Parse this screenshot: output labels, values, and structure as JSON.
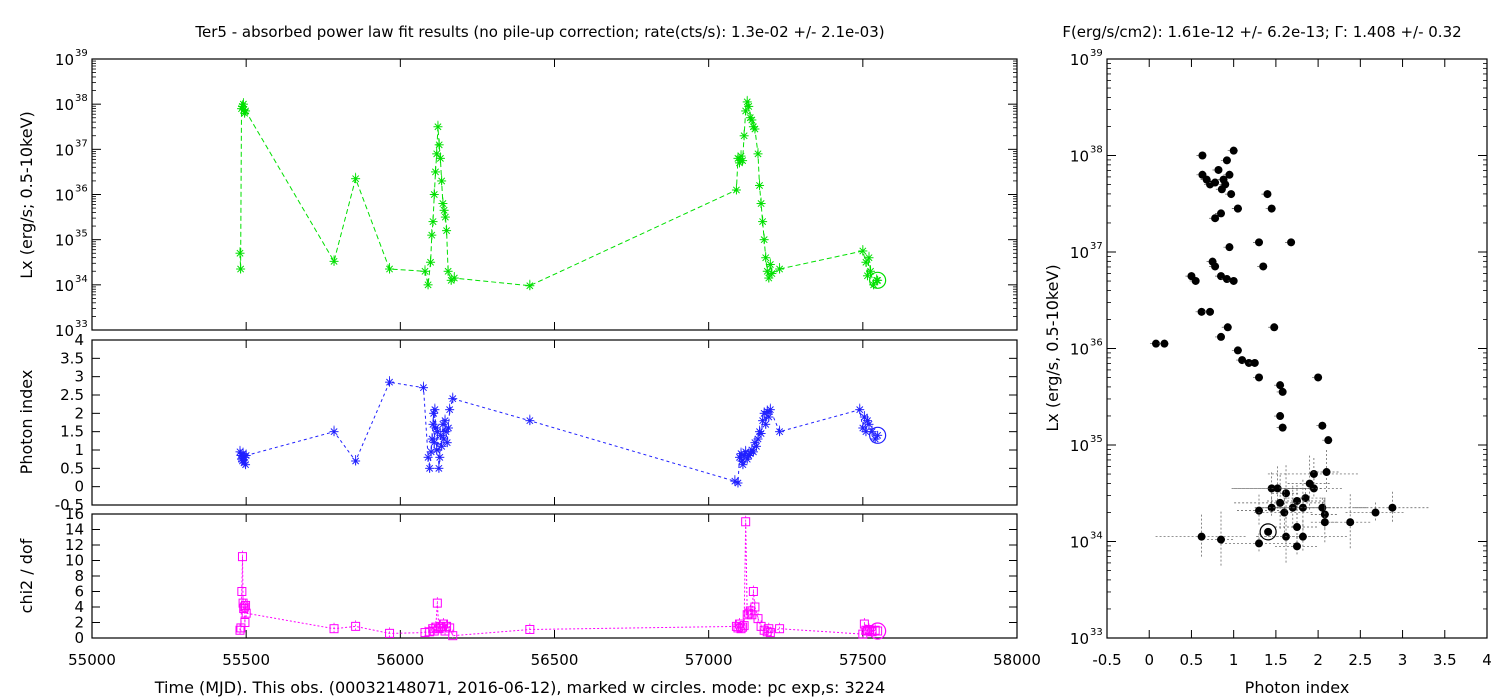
{
  "chart_data": [
    {
      "type": "line",
      "panel": "luminosity-vs-time",
      "title": "Ter5  - absorbed power law fit results (no pile-up correction; rate(cts/s): 1.3e-02 +/- 2.1e-03)",
      "ylabel": "Lx (erg/s; 0.5-10keV)",
      "yscale": "log",
      "ylim_exp": [
        33,
        39
      ],
      "ytick_base": "10",
      "ytick_exps": [
        "33",
        "34",
        "35",
        "36",
        "37",
        "38",
        "39"
      ],
      "color": "#00e000",
      "marker": "asterisk",
      "points": [
        [
          55480,
          34.7
        ],
        [
          55482,
          34.35
        ],
        [
          55485,
          37.9
        ],
        [
          55488,
          37.95
        ],
        [
          55491,
          38.0
        ],
        [
          55493,
          37.88
        ],
        [
          55495,
          37.8
        ],
        [
          55498,
          37.85
        ],
        [
          55785,
          34.52
        ],
        [
          55855,
          36.35
        ],
        [
          55965,
          34.35
        ],
        [
          56080,
          34.3
        ],
        [
          56090,
          34.0
        ],
        [
          56098,
          34.5
        ],
        [
          56102,
          35.1
        ],
        [
          56106,
          35.4
        ],
        [
          56110,
          36.0
        ],
        [
          56114,
          36.5
        ],
        [
          56118,
          36.9
        ],
        [
          56122,
          37.5
        ],
        [
          56126,
          37.1
        ],
        [
          56130,
          36.8
        ],
        [
          56134,
          36.3
        ],
        [
          56138,
          35.8
        ],
        [
          56142,
          35.65
        ],
        [
          56146,
          35.5
        ],
        [
          56150,
          35.2
        ],
        [
          56155,
          34.3
        ],
        [
          56165,
          34.1
        ],
        [
          56175,
          34.15
        ],
        [
          56420,
          33.98
        ],
        [
          57090,
          36.1
        ],
        [
          57095,
          36.8
        ],
        [
          57100,
          36.7
        ],
        [
          57105,
          36.85
        ],
        [
          57110,
          36.75
        ],
        [
          57115,
          37.3
        ],
        [
          57120,
          37.85
        ],
        [
          57125,
          38.05
        ],
        [
          57130,
          37.95
        ],
        [
          57135,
          37.7
        ],
        [
          57140,
          37.65
        ],
        [
          57145,
          37.5
        ],
        [
          57150,
          37.45
        ],
        [
          57160,
          36.9
        ],
        [
          57165,
          36.2
        ],
        [
          57170,
          35.8
        ],
        [
          57175,
          35.4
        ],
        [
          57180,
          35.0
        ],
        [
          57185,
          34.6
        ],
        [
          57190,
          34.3
        ],
        [
          57195,
          34.15
        ],
        [
          57200,
          34.45
        ],
        [
          57205,
          34.25
        ],
        [
          57230,
          34.35
        ],
        [
          57500,
          34.75
        ],
        [
          57510,
          34.5
        ],
        [
          57515,
          34.2
        ],
        [
          57520,
          34.6
        ],
        [
          57525,
          34.3
        ],
        [
          57535,
          34.0
        ],
        [
          57545,
          34.1
        ]
      ],
      "current_obs": [
        57548,
        34.1
      ]
    },
    {
      "type": "line",
      "panel": "photon-index-vs-time",
      "ylabel": "Photon index",
      "ylim": [
        -0.5,
        4
      ],
      "yticks": [
        "-0.5",
        "0",
        "0.5",
        "1",
        "1.5",
        "2",
        "2.5",
        "3",
        "3.5",
        "4"
      ],
      "color": "#2020ff",
      "marker": "asterisk",
      "points": [
        [
          55480,
          0.95
        ],
        [
          55483,
          0.85
        ],
        [
          55485,
          0.75
        ],
        [
          55488,
          0.7
        ],
        [
          55490,
          0.9
        ],
        [
          55493,
          0.65
        ],
        [
          55496,
          0.8
        ],
        [
          55498,
          0.6
        ],
        [
          55500,
          0.85
        ],
        [
          55785,
          1.5
        ],
        [
          55855,
          0.7
        ],
        [
          55965,
          2.85
        ],
        [
          56075,
          2.7
        ],
        [
          56090,
          0.8
        ],
        [
          56095,
          0.5
        ],
        [
          56100,
          0.95
        ],
        [
          56103,
          1.3
        ],
        [
          56106,
          1.7
        ],
        [
          56108,
          2.0
        ],
        [
          56110,
          1.2
        ],
        [
          56112,
          2.1
        ],
        [
          56115,
          1.6
        ],
        [
          56118,
          1.0
        ],
        [
          56121,
          1.5
        ],
        [
          56125,
          0.5
        ],
        [
          56128,
          0.8
        ],
        [
          56131,
          1.4
        ],
        [
          56134,
          1.1
        ],
        [
          56138,
          1.7
        ],
        [
          56141,
          1.3
        ],
        [
          56145,
          1.8
        ],
        [
          56148,
          1.5
        ],
        [
          56152,
          1.2
        ],
        [
          56156,
          1.6
        ],
        [
          56160,
          2.1
        ],
        [
          56170,
          2.4
        ],
        [
          56420,
          1.8
        ],
        [
          57085,
          0.15
        ],
        [
          57095,
          0.1
        ],
        [
          57100,
          0.8
        ],
        [
          57105,
          0.9
        ],
        [
          57108,
          0.7
        ],
        [
          57111,
          0.6
        ],
        [
          57115,
          0.85
        ],
        [
          57120,
          0.95
        ],
        [
          57125,
          0.75
        ],
        [
          57130,
          0.85
        ],
        [
          57135,
          0.9
        ],
        [
          57140,
          1.0
        ],
        [
          57145,
          0.95
        ],
        [
          57150,
          1.2
        ],
        [
          57155,
          1.1
        ],
        [
          57160,
          1.3
        ],
        [
          57165,
          1.5
        ],
        [
          57170,
          1.45
        ],
        [
          57175,
          1.8
        ],
        [
          57180,
          2.0
        ],
        [
          57185,
          1.7
        ],
        [
          57190,
          2.05
        ],
        [
          57195,
          1.9
        ],
        [
          57200,
          2.1
        ],
        [
          57230,
          1.5
        ],
        [
          57490,
          2.1
        ],
        [
          57500,
          1.6
        ],
        [
          57505,
          1.9
        ],
        [
          57510,
          1.5
        ],
        [
          57515,
          1.8
        ],
        [
          57520,
          1.7
        ],
        [
          57530,
          1.5
        ],
        [
          57540,
          1.3
        ]
      ],
      "current_obs": [
        57548,
        1.4
      ]
    },
    {
      "type": "line",
      "panel": "chi2-vs-time",
      "ylabel": "chi2 / dof",
      "xlabel": "Time (MJD). This obs. (00032148071, 2016-06-12), marked w circles. mode: pc exp,s: 3224",
      "ylim": [
        0,
        16
      ],
      "yticks": [
        "0",
        "2",
        "4",
        "6",
        "8",
        "10",
        "12",
        "14",
        "16"
      ],
      "xlim": [
        55000,
        58000
      ],
      "xticks": [
        "55000",
        "55500",
        "56000",
        "56500",
        "57000",
        "57500",
        "58000"
      ],
      "color": "#ff00ff",
      "marker": "square",
      "points": [
        [
          55480,
          1.0
        ],
        [
          55483,
          1.3
        ],
        [
          55486,
          6.0
        ],
        [
          55488,
          10.5
        ],
        [
          55490,
          4.5
        ],
        [
          55492,
          3.8
        ],
        [
          55494,
          4.0
        ],
        [
          55496,
          2.0
        ],
        [
          55498,
          4.2
        ],
        [
          55500,
          3.2
        ],
        [
          55785,
          1.2
        ],
        [
          55855,
          1.5
        ],
        [
          55965,
          0.6
        ],
        [
          56080,
          0.7
        ],
        [
          56095,
          0.8
        ],
        [
          56105,
          1.2
        ],
        [
          56110,
          0.9
        ],
        [
          56115,
          1.4
        ],
        [
          56120,
          4.5
        ],
        [
          56125,
          1.2
        ],
        [
          56130,
          1.5
        ],
        [
          56135,
          1.3
        ],
        [
          56140,
          1.8
        ],
        [
          56145,
          0.9
        ],
        [
          56150,
          1.5
        ],
        [
          56160,
          1.3
        ],
        [
          56170,
          0.3
        ],
        [
          56420,
          1.1
        ],
        [
          57090,
          1.5
        ],
        [
          57095,
          1.3
        ],
        [
          57100,
          1.8
        ],
        [
          57105,
          1.2
        ],
        [
          57110,
          1.4
        ],
        [
          57115,
          1.6
        ],
        [
          57120,
          15.0
        ],
        [
          57125,
          3.0
        ],
        [
          57130,
          3.2
        ],
        [
          57135,
          3.5
        ],
        [
          57140,
          3.0
        ],
        [
          57145,
          6.0
        ],
        [
          57150,
          4.0
        ],
        [
          57160,
          2.5
        ],
        [
          57170,
          1.5
        ],
        [
          57180,
          1.0
        ],
        [
          57190,
          0.8
        ],
        [
          57195,
          1.2
        ],
        [
          57200,
          0.7
        ],
        [
          57230,
          1.2
        ],
        [
          57500,
          0.5
        ],
        [
          57505,
          1.8
        ],
        [
          57510,
          1.0
        ],
        [
          57515,
          0.9
        ],
        [
          57520,
          1.1
        ],
        [
          57530,
          0.8
        ],
        [
          57540,
          1.0
        ]
      ],
      "current_obs": [
        57548,
        0.9
      ]
    },
    {
      "type": "scatter",
      "panel": "lx-vs-photon-index",
      "title": "F(erg/s/cm2): 1.61e-12 +/- 6.2e-13; Γ: 1.408 +/- 0.32",
      "xlabel": "Photon index",
      "ylabel": "Lx (erg/s, 0.5-10keV)",
      "xlim": [
        -0.5,
        4
      ],
      "xticks": [
        "-0.5",
        "0",
        "0.5",
        "1",
        "1.5",
        "2",
        "2.5",
        "3",
        "3.5",
        "4"
      ],
      "yscale": "log",
      "ylim_exp": [
        33,
        39
      ],
      "ytick_base": "10",
      "ytick_exps": [
        "33",
        "34",
        "35",
        "36",
        "37",
        "38",
        "39"
      ],
      "color": "#000000",
      "points": [
        [
          0.63,
          38.0
        ],
        [
          0.63,
          37.8
        ],
        [
          0.68,
          37.75
        ],
        [
          0.72,
          37.7
        ],
        [
          0.78,
          37.72
        ],
        [
          0.82,
          37.85
        ],
        [
          0.86,
          37.65
        ],
        [
          0.88,
          37.75
        ],
        [
          0.9,
          37.7
        ],
        [
          0.92,
          37.95
        ],
        [
          0.95,
          37.8
        ],
        [
          0.97,
          37.6
        ],
        [
          1.0,
          38.05
        ],
        [
          0.78,
          37.35
        ],
        [
          0.85,
          37.4
        ],
        [
          1.05,
          37.45
        ],
        [
          1.05,
          37.45
        ],
        [
          1.4,
          37.6
        ],
        [
          1.45,
          37.45
        ],
        [
          0.95,
          37.05
        ],
        [
          0.78,
          36.85
        ],
        [
          0.75,
          36.9
        ],
        [
          0.85,
          36.75
        ],
        [
          0.92,
          36.72
        ],
        [
          1.0,
          36.7
        ],
        [
          1.35,
          36.85
        ],
        [
          1.3,
          37.1
        ],
        [
          1.68,
          37.1
        ],
        [
          0.5,
          36.75
        ],
        [
          0.55,
          36.7
        ],
        [
          0.62,
          36.38
        ],
        [
          0.72,
          36.38
        ],
        [
          0.93,
          36.22
        ],
        [
          0.85,
          36.12
        ],
        [
          0.08,
          36.05
        ],
        [
          0.18,
          36.05
        ],
        [
          1.05,
          35.98
        ],
        [
          1.1,
          35.88
        ],
        [
          1.18,
          35.85
        ],
        [
          1.25,
          35.85
        ],
        [
          1.3,
          35.7
        ],
        [
          1.48,
          36.22
        ],
        [
          1.55,
          35.62
        ],
        [
          1.58,
          35.55
        ],
        [
          2.0,
          35.7
        ],
        [
          1.55,
          35.3
        ],
        [
          1.58,
          35.18
        ],
        [
          2.05,
          35.2
        ],
        [
          2.12,
          35.05
        ],
        [
          1.95,
          34.7
        ],
        [
          2.1,
          34.72
        ],
        [
          1.9,
          34.6
        ],
        [
          1.95,
          34.55
        ],
        [
          1.45,
          34.55
        ],
        [
          1.52,
          34.55
        ],
        [
          1.62,
          34.5
        ],
        [
          1.85,
          34.45
        ],
        [
          1.75,
          34.42
        ],
        [
          1.7,
          34.35
        ],
        [
          1.55,
          34.4
        ],
        [
          1.45,
          34.35
        ],
        [
          1.3,
          34.32
        ],
        [
          1.6,
          34.3
        ],
        [
          1.82,
          34.35
        ],
        [
          2.05,
          34.35
        ],
        [
          2.08,
          34.28
        ],
        [
          1.75,
          34.15
        ],
        [
          1.62,
          34.05
        ],
        [
          1.3,
          33.98
        ],
        [
          1.82,
          34.05
        ],
        [
          2.08,
          34.2
        ],
        [
          2.38,
          34.2
        ],
        [
          2.68,
          34.3
        ],
        [
          2.88,
          34.35
        ],
        [
          0.62,
          34.05
        ],
        [
          0.85,
          34.02
        ],
        [
          1.75,
          33.95
        ]
      ],
      "current_obs": [
        1.408,
        34.1
      ]
    }
  ]
}
